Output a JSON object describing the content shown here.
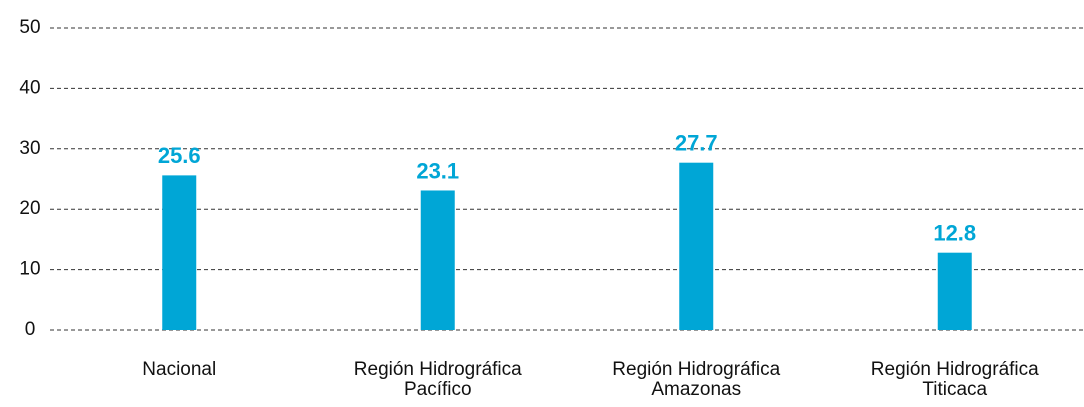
{
  "chart_data": {
    "type": "bar",
    "categories": [
      [
        "Nacional"
      ],
      [
        "Región Hidrográfica",
        "Pacífico"
      ],
      [
        "Región Hidrográfica",
        "Amazonas"
      ],
      [
        "Región Hidrográfica",
        "Titicaca"
      ]
    ],
    "values": [
      25.6,
      23.1,
      27.7,
      12.8
    ],
    "color": "#00a6d6",
    "ylim": [
      0,
      50
    ],
    "yticks": [
      0,
      10,
      20,
      30,
      40,
      50
    ],
    "grid": true
  }
}
